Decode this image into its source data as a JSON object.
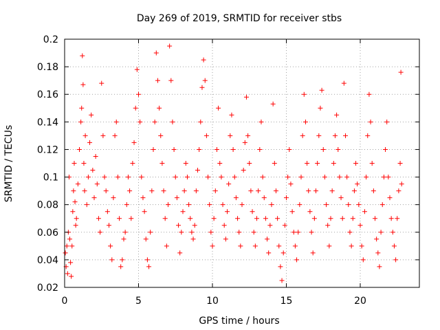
{
  "chart_data": {
    "type": "scatter",
    "title": "Day 269 of 2019, SRMTID for receiver stbs",
    "xlabel": "GPS time / hours",
    "ylabel": "SRMTID / TECUs",
    "xlim": [
      0,
      24
    ],
    "ylim": [
      0.02,
      0.2
    ],
    "x_ticks": [
      0,
      5,
      10,
      15,
      20
    ],
    "y_ticks": [
      0.02,
      0.04,
      0.06,
      0.08,
      0.1,
      0.12,
      0.14,
      0.16,
      0.18,
      0.2
    ],
    "x_tick_labels": [
      "0",
      "5",
      "10",
      "15",
      "20"
    ],
    "y_tick_labels": [
      "0.02",
      "0.04",
      "0.06",
      "0.08",
      "0.1",
      "0.12",
      "0.14",
      "0.16",
      "0.18",
      "0.2"
    ],
    "grid": true,
    "marker": "plus",
    "color": "#ff0000",
    "points": [
      [
        0.05,
        0.045
      ],
      [
        0.1,
        0.035
      ],
      [
        0.15,
        0.05
      ],
      [
        0.2,
        0.03
      ],
      [
        0.25,
        0.06
      ],
      [
        0.3,
        0.1
      ],
      [
        0.35,
        0.055
      ],
      [
        0.4,
        0.038
      ],
      [
        0.45,
        0.028
      ],
      [
        0.5,
        0.05
      ],
      [
        0.55,
        0.075
      ],
      [
        0.6,
        0.09
      ],
      [
        0.65,
        0.11
      ],
      [
        0.7,
        0.082
      ],
      [
        0.75,
        0.065
      ],
      [
        0.8,
        0.07
      ],
      [
        0.9,
        0.095
      ],
      [
        1.0,
        0.12
      ],
      [
        1.1,
        0.14
      ],
      [
        1.15,
        0.15
      ],
      [
        1.2,
        0.188
      ],
      [
        1.25,
        0.167
      ],
      [
        1.3,
        0.11
      ],
      [
        1.35,
        0.09
      ],
      [
        1.4,
        0.13
      ],
      [
        1.5,
        0.08
      ],
      [
        1.6,
        0.1
      ],
      [
        1.7,
        0.125
      ],
      [
        1.8,
        0.145
      ],
      [
        1.9,
        0.105
      ],
      [
        2.0,
        0.085
      ],
      [
        2.1,
        0.115
      ],
      [
        2.2,
        0.095
      ],
      [
        2.3,
        0.07
      ],
      [
        2.4,
        0.06
      ],
      [
        2.5,
        0.168
      ],
      [
        2.6,
        0.13
      ],
      [
        2.7,
        0.1
      ],
      [
        2.8,
        0.09
      ],
      [
        2.9,
        0.075
      ],
      [
        3.0,
        0.065
      ],
      [
        3.1,
        0.05
      ],
      [
        3.2,
        0.04
      ],
      [
        3.3,
        0.085
      ],
      [
        3.4,
        0.13
      ],
      [
        3.5,
        0.14
      ],
      [
        3.6,
        0.1
      ],
      [
        3.7,
        0.07
      ],
      [
        3.8,
        0.035
      ],
      [
        3.9,
        0.04
      ],
      [
        4.0,
        0.055
      ],
      [
        4.1,
        0.06
      ],
      [
        4.2,
        0.08
      ],
      [
        4.3,
        0.1
      ],
      [
        4.4,
        0.09
      ],
      [
        4.5,
        0.07
      ],
      [
        4.6,
        0.11
      ],
      [
        4.7,
        0.125
      ],
      [
        4.8,
        0.15
      ],
      [
        4.9,
        0.178
      ],
      [
        5.0,
        0.16
      ],
      [
        5.1,
        0.14
      ],
      [
        5.2,
        0.1
      ],
      [
        5.3,
        0.085
      ],
      [
        5.4,
        0.075
      ],
      [
        5.5,
        0.055
      ],
      [
        5.6,
        0.04
      ],
      [
        5.7,
        0.035
      ],
      [
        5.8,
        0.06
      ],
      [
        5.9,
        0.09
      ],
      [
        6.0,
        0.12
      ],
      [
        6.1,
        0.14
      ],
      [
        6.2,
        0.19
      ],
      [
        6.3,
        0.17
      ],
      [
        6.4,
        0.15
      ],
      [
        6.5,
        0.13
      ],
      [
        6.6,
        0.11
      ],
      [
        6.7,
        0.09
      ],
      [
        6.8,
        0.07
      ],
      [
        6.9,
        0.05
      ],
      [
        7.0,
        0.08
      ],
      [
        7.1,
        0.195
      ],
      [
        7.2,
        0.17
      ],
      [
        7.3,
        0.14
      ],
      [
        7.4,
        0.12
      ],
      [
        7.5,
        0.1
      ],
      [
        7.6,
        0.085
      ],
      [
        7.7,
        0.065
      ],
      [
        7.8,
        0.045
      ],
      [
        7.9,
        0.06
      ],
      [
        8.0,
        0.075
      ],
      [
        8.1,
        0.09
      ],
      [
        8.2,
        0.11
      ],
      [
        8.3,
        0.1
      ],
      [
        8.4,
        0.08
      ],
      [
        8.5,
        0.07
      ],
      [
        8.6,
        0.06
      ],
      [
        8.7,
        0.055
      ],
      [
        8.8,
        0.065
      ],
      [
        8.9,
        0.09
      ],
      [
        9.0,
        0.105
      ],
      [
        9.1,
        0.12
      ],
      [
        9.2,
        0.14
      ],
      [
        9.3,
        0.165
      ],
      [
        9.4,
        0.185
      ],
      [
        9.5,
        0.17
      ],
      [
        9.6,
        0.13
      ],
      [
        9.7,
        0.1
      ],
      [
        9.8,
        0.08
      ],
      [
        9.9,
        0.06
      ],
      [
        10.0,
        0.05
      ],
      [
        10.1,
        0.07
      ],
      [
        10.2,
        0.09
      ],
      [
        10.3,
        0.12
      ],
      [
        10.4,
        0.15
      ],
      [
        10.5,
        0.11
      ],
      [
        10.6,
        0.1
      ],
      [
        10.7,
        0.08
      ],
      [
        10.8,
        0.065
      ],
      [
        10.9,
        0.055
      ],
      [
        11.0,
        0.075
      ],
      [
        11.1,
        0.095
      ],
      [
        11.2,
        0.13
      ],
      [
        11.3,
        0.145
      ],
      [
        11.4,
        0.12
      ],
      [
        11.5,
        0.1
      ],
      [
        11.6,
        0.085
      ],
      [
        11.7,
        0.07
      ],
      [
        11.8,
        0.06
      ],
      [
        11.9,
        0.05
      ],
      [
        12.0,
        0.08
      ],
      [
        12.1,
        0.105
      ],
      [
        12.2,
        0.125
      ],
      [
        12.3,
        0.158
      ],
      [
        12.4,
        0.13
      ],
      [
        12.5,
        0.11
      ],
      [
        12.6,
        0.09
      ],
      [
        12.7,
        0.075
      ],
      [
        12.8,
        0.06
      ],
      [
        12.9,
        0.05
      ],
      [
        13.0,
        0.07
      ],
      [
        13.1,
        0.09
      ],
      [
        13.2,
        0.12
      ],
      [
        13.3,
        0.14
      ],
      [
        13.4,
        0.1
      ],
      [
        13.5,
        0.085
      ],
      [
        13.6,
        0.07
      ],
      [
        13.7,
        0.055
      ],
      [
        13.8,
        0.045
      ],
      [
        13.9,
        0.065
      ],
      [
        14.0,
        0.08
      ],
      [
        14.1,
        0.153
      ],
      [
        14.2,
        0.11
      ],
      [
        14.3,
        0.09
      ],
      [
        14.4,
        0.07
      ],
      [
        14.5,
        0.05
      ],
      [
        14.6,
        0.035
      ],
      [
        14.7,
        0.025
      ],
      [
        14.8,
        0.045
      ],
      [
        14.9,
        0.065
      ],
      [
        15.0,
        0.085
      ],
      [
        15.1,
        0.1
      ],
      [
        15.2,
        0.12
      ],
      [
        15.3,
        0.095
      ],
      [
        15.4,
        0.075
      ],
      [
        15.5,
        0.06
      ],
      [
        15.6,
        0.05
      ],
      [
        15.7,
        0.04
      ],
      [
        15.8,
        0.06
      ],
      [
        15.9,
        0.08
      ],
      [
        16.0,
        0.1
      ],
      [
        16.1,
        0.13
      ],
      [
        16.2,
        0.16
      ],
      [
        16.3,
        0.14
      ],
      [
        16.4,
        0.11
      ],
      [
        16.5,
        0.09
      ],
      [
        16.6,
        0.075
      ],
      [
        16.7,
        0.06
      ],
      [
        16.8,
        0.045
      ],
      [
        16.9,
        0.07
      ],
      [
        17.0,
        0.09
      ],
      [
        17.1,
        0.11
      ],
      [
        17.2,
        0.13
      ],
      [
        17.3,
        0.15
      ],
      [
        17.4,
        0.163
      ],
      [
        17.5,
        0.12
      ],
      [
        17.6,
        0.1
      ],
      [
        17.7,
        0.08
      ],
      [
        17.8,
        0.065
      ],
      [
        17.9,
        0.05
      ],
      [
        18.0,
        0.07
      ],
      [
        18.1,
        0.09
      ],
      [
        18.2,
        0.11
      ],
      [
        18.3,
        0.13
      ],
      [
        18.4,
        0.145
      ],
      [
        18.5,
        0.12
      ],
      [
        18.6,
        0.1
      ],
      [
        18.7,
        0.085
      ],
      [
        18.8,
        0.07
      ],
      [
        18.9,
        0.168
      ],
      [
        19.0,
        0.13
      ],
      [
        19.1,
        0.1
      ],
      [
        19.2,
        0.08
      ],
      [
        19.3,
        0.06
      ],
      [
        19.4,
        0.05
      ],
      [
        19.5,
        0.07
      ],
      [
        19.6,
        0.09
      ],
      [
        19.7,
        0.11
      ],
      [
        19.8,
        0.095
      ],
      [
        19.9,
        0.08
      ],
      [
        20.0,
        0.065
      ],
      [
        20.1,
        0.05
      ],
      [
        20.2,
        0.04
      ],
      [
        20.3,
        0.075
      ],
      [
        20.4,
        0.1
      ],
      [
        20.5,
        0.13
      ],
      [
        20.6,
        0.16
      ],
      [
        20.7,
        0.14
      ],
      [
        20.8,
        0.11
      ],
      [
        20.9,
        0.09
      ],
      [
        21.0,
        0.07
      ],
      [
        21.1,
        0.055
      ],
      [
        21.2,
        0.045
      ],
      [
        21.3,
        0.035
      ],
      [
        21.4,
        0.06
      ],
      [
        21.5,
        0.08
      ],
      [
        21.6,
        0.1
      ],
      [
        21.7,
        0.12
      ],
      [
        21.8,
        0.14
      ],
      [
        21.9,
        0.1
      ],
      [
        22.0,
        0.085
      ],
      [
        22.1,
        0.07
      ],
      [
        22.2,
        0.06
      ],
      [
        22.3,
        0.05
      ],
      [
        22.4,
        0.04
      ],
      [
        22.5,
        0.07
      ],
      [
        22.6,
        0.09
      ],
      [
        22.7,
        0.11
      ],
      [
        22.75,
        0.176
      ],
      [
        22.8,
        0.095
      ]
    ]
  }
}
